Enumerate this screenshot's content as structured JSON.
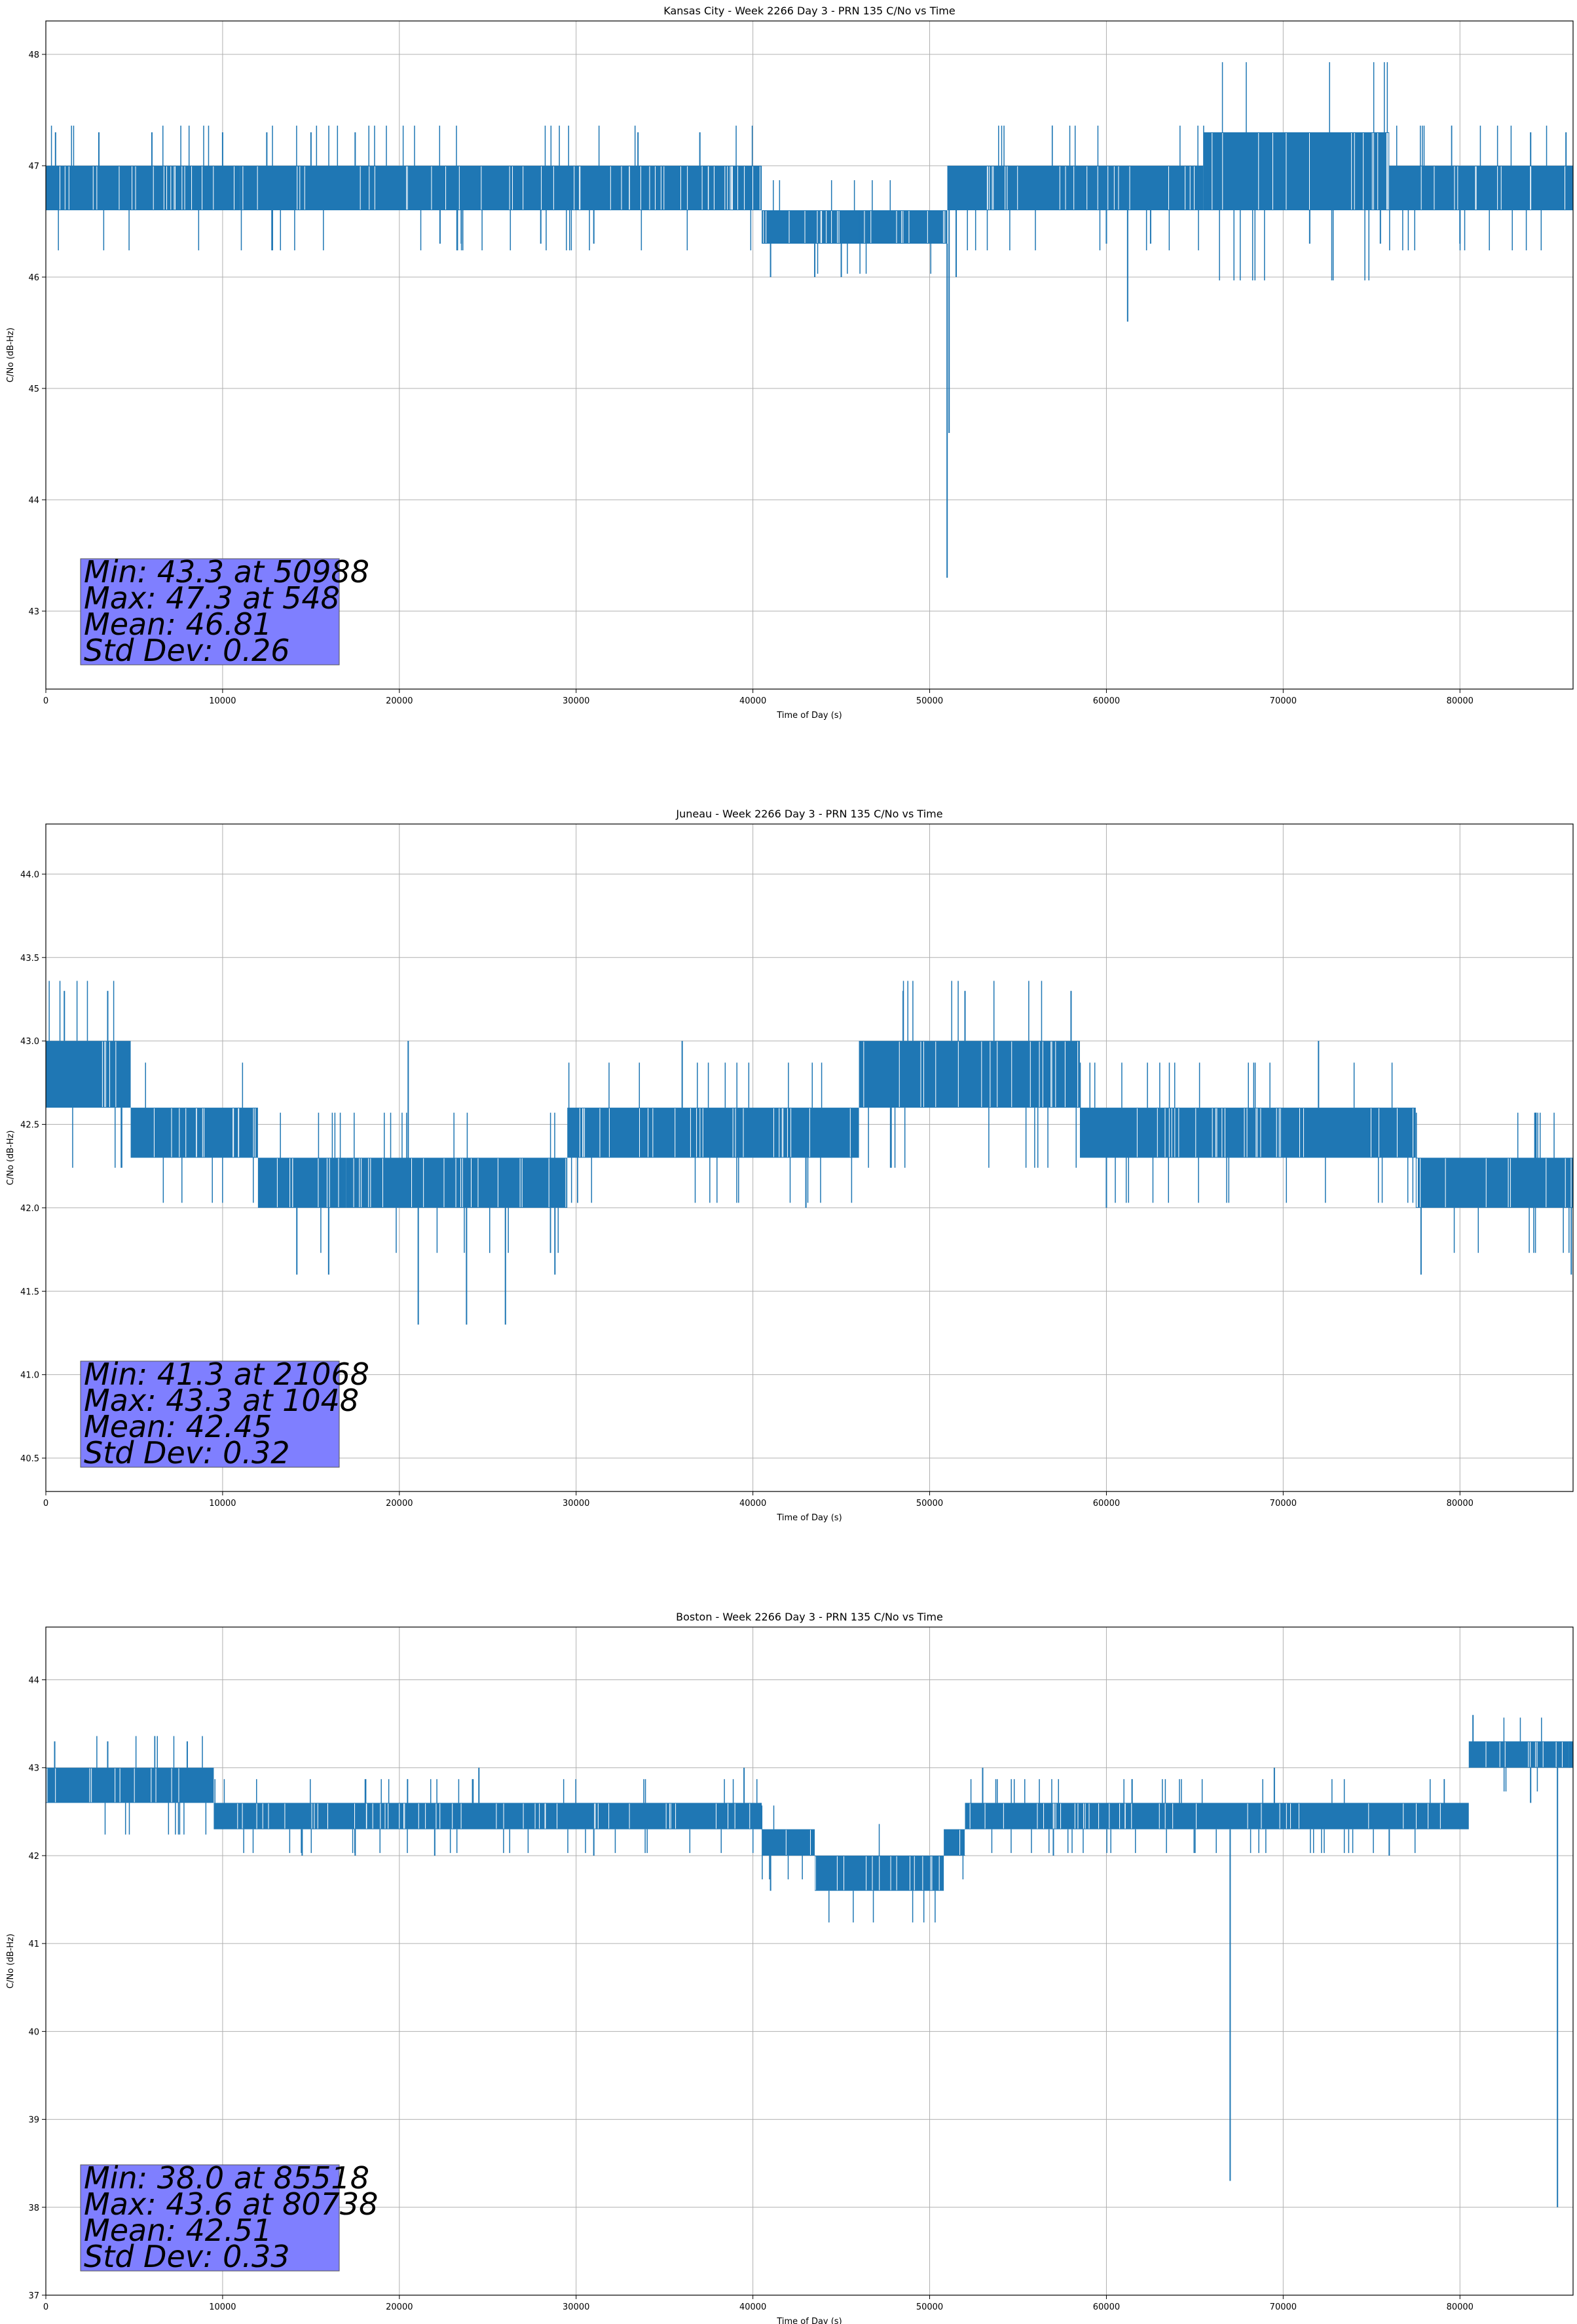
{
  "colors": {
    "series": "#1f77b4",
    "grid": "#b0b0b0",
    "stats_box": "#7f7fff"
  },
  "chart_data": [
    {
      "type": "line",
      "title": "Kansas City - Week 2266 Day 3 - PRN 135 C/No vs Time",
      "xlabel": "Time of Day (s)",
      "ylabel": "C/No (dB-Hz)",
      "xlim": [
        0,
        86400
      ],
      "ylim": [
        42.3,
        48.3
      ],
      "xticks": [
        0,
        10000,
        20000,
        30000,
        40000,
        50000,
        60000,
        70000,
        80000
      ],
      "yticks": [
        43,
        44,
        45,
        46,
        47,
        48
      ],
      "grid": true,
      "series_name": "C/No",
      "bands": [
        {
          "x": [
            0,
            11000
          ],
          "low": 46.6,
          "high": 47.0
        },
        {
          "x": [
            11000,
            40500
          ],
          "low": 46.6,
          "high": 47.0
        },
        {
          "x": [
            40500,
            51000
          ],
          "low": 46.3,
          "high": 46.6
        },
        {
          "x": [
            51000,
            65500
          ],
          "low": 46.6,
          "high": 47.0
        },
        {
          "x": [
            65500,
            76000
          ],
          "low": 46.6,
          "high": 47.3
        },
        {
          "x": [
            76000,
            86400
          ],
          "low": 46.6,
          "high": 47.0
        }
      ],
      "spikes": [
        {
          "x": 548,
          "y": 47.3
        },
        {
          "x": 3000,
          "y": 47.3
        },
        {
          "x": 6000,
          "y": 47.3
        },
        {
          "x": 10000,
          "y": 47.3
        },
        {
          "x": 12500,
          "y": 47.3
        },
        {
          "x": 15000,
          "y": 47.3
        },
        {
          "x": 17500,
          "y": 47.3
        },
        {
          "x": 22300,
          "y": 46.3
        },
        {
          "x": 23500,
          "y": 46.3
        },
        {
          "x": 28000,
          "y": 46.3
        },
        {
          "x": 31000,
          "y": 46.3
        },
        {
          "x": 33500,
          "y": 47.3
        },
        {
          "x": 37000,
          "y": 47.3
        },
        {
          "x": 41000,
          "y": 46.0
        },
        {
          "x": 43500,
          "y": 46.0
        },
        {
          "x": 45000,
          "y": 46.0
        },
        {
          "x": 46000,
          "y": 46.3
        },
        {
          "x": 50988,
          "y": 43.3
        },
        {
          "x": 51100,
          "y": 44.6
        },
        {
          "x": 51500,
          "y": 46.0
        },
        {
          "x": 60000,
          "y": 46.3
        },
        {
          "x": 61200,
          "y": 45.6
        },
        {
          "x": 62500,
          "y": 46.3
        },
        {
          "x": 68500,
          "y": 47.3
        },
        {
          "x": 71500,
          "y": 46.3
        },
        {
          "x": 75500,
          "y": 46.3
        },
        {
          "x": 80000,
          "y": 46.3
        },
        {
          "x": 84000,
          "y": 47.3
        },
        {
          "x": 86000,
          "y": 47.3
        }
      ],
      "stats": {
        "min": "Min: 43.3 at 50988",
        "max": "Max: 47.3 at 548",
        "mean": "Mean: 46.81",
        "std": "Std Dev: 0.26"
      }
    },
    {
      "type": "line",
      "title": "Juneau - Week 2266 Day 3 - PRN 135 C/No vs Time",
      "xlabel": "Time of Day (s)",
      "ylabel": "C/No (dB-Hz)",
      "xlim": [
        0,
        86400
      ],
      "ylim": [
        40.3,
        44.3
      ],
      "xticks": [
        0,
        10000,
        20000,
        30000,
        40000,
        50000,
        60000,
        70000,
        80000
      ],
      "yticks": [
        40.5,
        41.0,
        41.5,
        42.0,
        42.5,
        43.0,
        43.5,
        44.0
      ],
      "grid": true,
      "series_name": "C/No",
      "bands": [
        {
          "x": [
            0,
            4800
          ],
          "low": 42.6,
          "high": 43.0
        },
        {
          "x": [
            4800,
            12000
          ],
          "low": 42.3,
          "high": 42.6
        },
        {
          "x": [
            12000,
            17000
          ],
          "low": 42.0,
          "high": 42.3
        },
        {
          "x": [
            17000,
            29500
          ],
          "low": 42.0,
          "high": 42.3
        },
        {
          "x": [
            29500,
            46000
          ],
          "low": 42.3,
          "high": 42.6
        },
        {
          "x": [
            46000,
            58500
          ],
          "low": 42.6,
          "high": 43.0
        },
        {
          "x": [
            58500,
            77500
          ],
          "low": 42.3,
          "high": 42.6
        },
        {
          "x": [
            77500,
            86400
          ],
          "low": 42.0,
          "high": 42.3
        }
      ],
      "spikes": [
        {
          "x": 1048,
          "y": 43.3
        },
        {
          "x": 3500,
          "y": 43.3
        },
        {
          "x": 14200,
          "y": 41.6
        },
        {
          "x": 16000,
          "y": 41.6
        },
        {
          "x": 20500,
          "y": 43.0
        },
        {
          "x": 21068,
          "y": 41.3
        },
        {
          "x": 23800,
          "y": 41.3
        },
        {
          "x": 26000,
          "y": 41.3
        },
        {
          "x": 28800,
          "y": 41.6
        },
        {
          "x": 36000,
          "y": 43.0
        },
        {
          "x": 43000,
          "y": 42.0
        },
        {
          "x": 48500,
          "y": 43.3
        },
        {
          "x": 52000,
          "y": 43.3
        },
        {
          "x": 58000,
          "y": 43.3
        },
        {
          "x": 60000,
          "y": 42.0
        },
        {
          "x": 72000,
          "y": 43.0
        },
        {
          "x": 77800,
          "y": 41.6
        },
        {
          "x": 86300,
          "y": 41.6
        }
      ],
      "stats": {
        "min": "Min: 41.3 at 21068",
        "max": "Max: 43.3 at 1048",
        "mean": "Mean: 42.45",
        "std": "Std Dev: 0.32"
      }
    },
    {
      "type": "line",
      "title": "Boston - Week 2266 Day 3 - PRN 135 C/No vs Time",
      "xlabel": "Time of Day (s)",
      "ylabel": "C/No (dB-Hz)",
      "xlim": [
        0,
        86400
      ],
      "ylim": [
        37,
        44.6
      ],
      "xticks": [
        0,
        10000,
        20000,
        30000,
        40000,
        50000,
        60000,
        70000,
        80000
      ],
      "yticks": [
        37,
        38,
        39,
        40,
        41,
        42,
        43,
        44
      ],
      "grid": true,
      "series_name": "C/No",
      "bands": [
        {
          "x": [
            0,
            9500
          ],
          "low": 42.6,
          "high": 43.0
        },
        {
          "x": [
            9500,
            40500
          ],
          "low": 42.3,
          "high": 42.6
        },
        {
          "x": [
            40500,
            43500
          ],
          "low": 42.0,
          "high": 42.3
        },
        {
          "x": [
            43500,
            50800
          ],
          "low": 41.6,
          "high": 42.0
        },
        {
          "x": [
            50800,
            52000
          ],
          "low": 42.0,
          "high": 42.3
        },
        {
          "x": [
            52000,
            80500
          ],
          "low": 42.3,
          "high": 42.6
        },
        {
          "x": [
            80500,
            86400
          ],
          "low": 43.0,
          "high": 43.3
        }
      ],
      "spikes": [
        {
          "x": 500,
          "y": 43.3
        },
        {
          "x": 3500,
          "y": 43.3
        },
        {
          "x": 8000,
          "y": 43.3
        },
        {
          "x": 14500,
          "y": 42.0
        },
        {
          "x": 17500,
          "y": 42.0
        },
        {
          "x": 22000,
          "y": 42.0
        },
        {
          "x": 24500,
          "y": 43.0
        },
        {
          "x": 31000,
          "y": 42.0
        },
        {
          "x": 39500,
          "y": 43.0
        },
        {
          "x": 41000,
          "y": 41.6
        },
        {
          "x": 53000,
          "y": 43.0
        },
        {
          "x": 57000,
          "y": 42.0
        },
        {
          "x": 67000,
          "y": 38.3
        },
        {
          "x": 69500,
          "y": 43.0
        },
        {
          "x": 76000,
          "y": 42.0
        },
        {
          "x": 80738,
          "y": 43.6
        },
        {
          "x": 84000,
          "y": 42.6
        },
        {
          "x": 85518,
          "y": 38.0
        },
        {
          "x": 86200,
          "y": 43.0
        }
      ],
      "stats": {
        "min": "Min: 38.0 at 85518",
        "max": "Max: 43.6 at 80738",
        "mean": "Mean: 42.51",
        "std": "Std Dev: 0.33"
      }
    }
  ]
}
